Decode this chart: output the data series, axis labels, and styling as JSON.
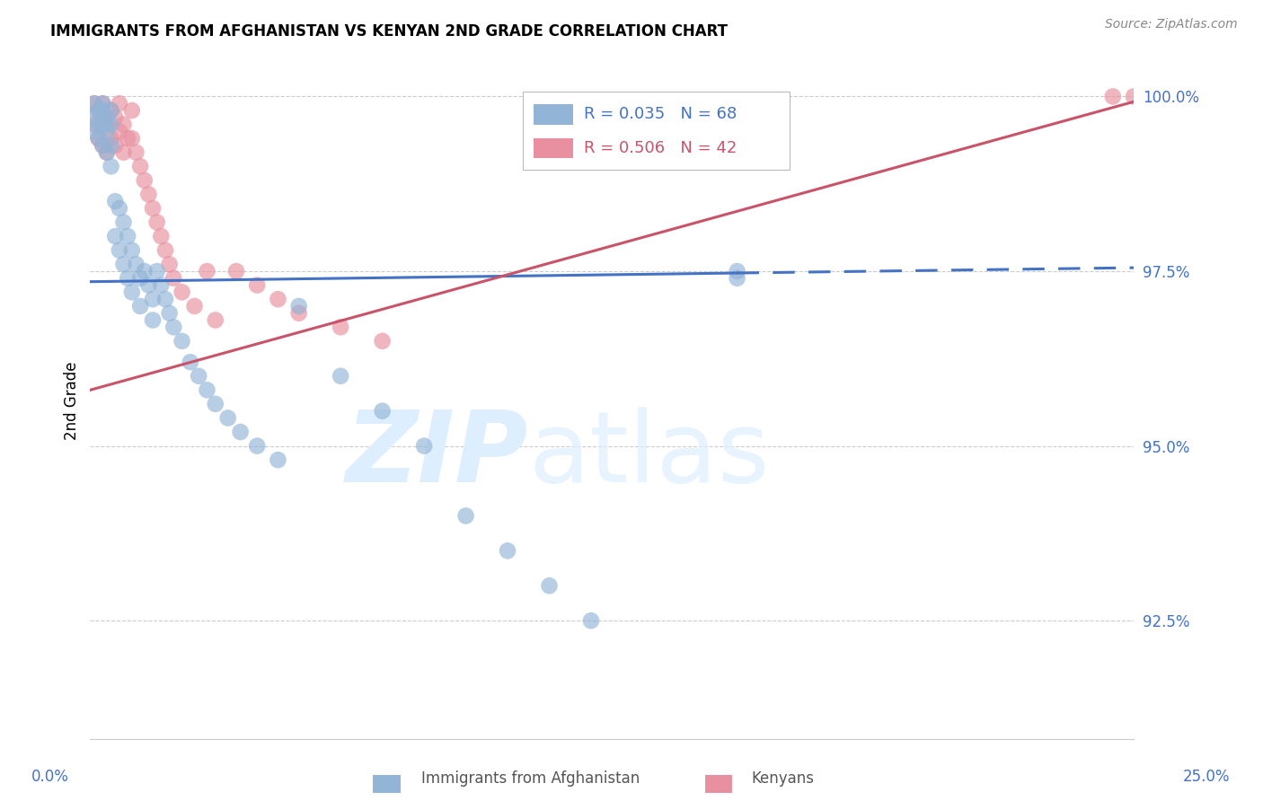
{
  "title": "IMMIGRANTS FROM AFGHANISTAN VS KENYAN 2ND GRADE CORRELATION CHART",
  "source": "Source: ZipAtlas.com",
  "ylabel": "2nd Grade",
  "ytick_labels": [
    "92.5%",
    "95.0%",
    "97.5%",
    "100.0%"
  ],
  "ytick_values": [
    0.925,
    0.95,
    0.975,
    1.0
  ],
  "xlim": [
    0.0,
    0.25
  ],
  "ylim": [
    0.908,
    1.005
  ],
  "blue_color": "#92b4d7",
  "pink_color": "#e8909f",
  "blue_line_color": "#4472c4",
  "pink_line_color": "#c9546a",
  "grid_color": "#cccccc",
  "watermark_color": "#ddeeff",
  "legend_r_blue": "R = 0.035",
  "legend_n_blue": "N = 68",
  "legend_r_pink": "R = 0.506",
  "legend_n_pink": "N = 42",
  "blue_line_intercept": 0.9735,
  "blue_line_slope": 0.008,
  "blue_line_solid_end": 0.155,
  "pink_line_intercept": 0.958,
  "pink_line_slope": 0.165
}
